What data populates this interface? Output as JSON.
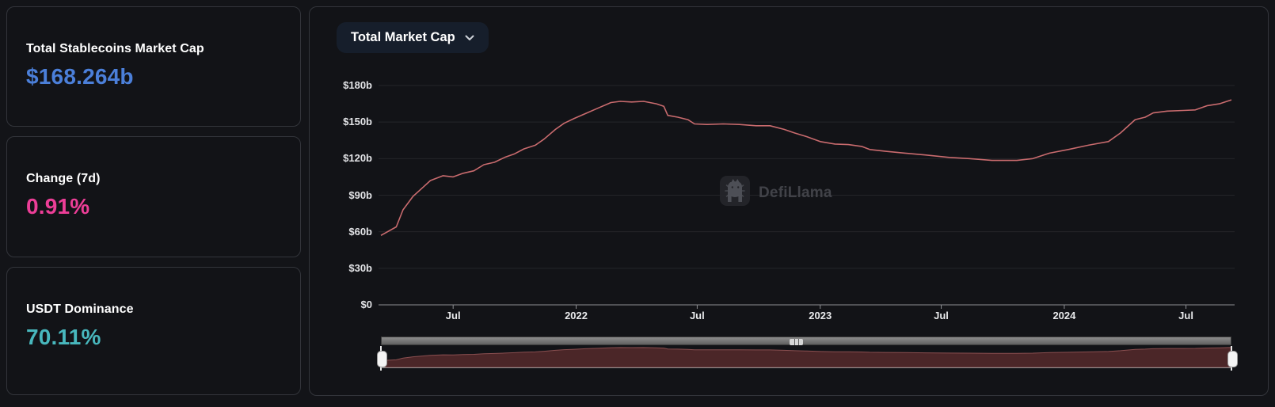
{
  "stats": {
    "market_cap": {
      "label": "Total Stablecoins Market Cap",
      "value": "$168.264b",
      "color": "#4b7fd9"
    },
    "change_7d": {
      "label": "Change (7d)",
      "value": "0.91%",
      "color": "#ec3e97"
    },
    "dominance": {
      "label": "USDT Dominance",
      "value": "70.11%",
      "color": "#48b7bd"
    }
  },
  "chart_panel": {
    "selector_label": "Total Market Cap",
    "watermark": "DefiLlama"
  },
  "colors": {
    "line": "#c96b6e",
    "brush_fill": "#4b2628",
    "brush_stroke": "#8a4f50",
    "grid": "rgba(255,255,255,0.08)",
    "axis": "#8d8f93"
  },
  "chart_data": {
    "type": "line",
    "title": "Total Market Cap",
    "xlabel": "",
    "ylabel": "",
    "ylim": [
      0,
      180
    ],
    "grid": true,
    "legend": "none",
    "y_ticks": [
      {
        "v": 0,
        "label": "$0"
      },
      {
        "v": 30,
        "label": "$30b"
      },
      {
        "v": 60,
        "label": "$60b"
      },
      {
        "v": 90,
        "label": "$90b"
      },
      {
        "v": 120,
        "label": "$120b"
      },
      {
        "v": 150,
        "label": "$150b"
      },
      {
        "v": 180,
        "label": "$180b"
      }
    ],
    "x_ticks": [
      {
        "date": "2021-07-01",
        "label": "Jul",
        "bold": false
      },
      {
        "date": "2022-01-01",
        "label": "2022",
        "bold": true
      },
      {
        "date": "2022-07-01",
        "label": "Jul",
        "bold": false
      },
      {
        "date": "2023-01-01",
        "label": "2023",
        "bold": true
      },
      {
        "date": "2023-07-01",
        "label": "Jul",
        "bold": false
      },
      {
        "date": "2024-01-01",
        "label": "2024",
        "bold": true
      },
      {
        "date": "2024-07-01",
        "label": "Jul",
        "bold": false
      }
    ],
    "series": [
      {
        "name": "Total Stablecoins Market Cap ($b)",
        "points": [
          [
            "2021-03-15",
            57
          ],
          [
            "2021-04-07",
            64
          ],
          [
            "2021-04-17",
            78
          ],
          [
            "2021-05-02",
            89
          ],
          [
            "2021-05-16",
            96
          ],
          [
            "2021-05-28",
            102
          ],
          [
            "2021-06-16",
            106
          ],
          [
            "2021-07-01",
            105
          ],
          [
            "2021-07-16",
            108
          ],
          [
            "2021-08-01",
            110
          ],
          [
            "2021-08-16",
            115
          ],
          [
            "2021-09-01",
            117
          ],
          [
            "2021-09-16",
            121
          ],
          [
            "2021-10-01",
            124
          ],
          [
            "2021-10-15",
            128
          ],
          [
            "2021-11-01",
            131
          ],
          [
            "2021-11-14",
            136
          ],
          [
            "2021-12-01",
            144
          ],
          [
            "2021-12-14",
            149
          ],
          [
            "2021-12-29",
            153
          ],
          [
            "2022-01-15",
            157
          ],
          [
            "2022-02-05",
            162
          ],
          [
            "2022-02-22",
            166
          ],
          [
            "2022-03-08",
            167
          ],
          [
            "2022-03-25",
            166.5
          ],
          [
            "2022-04-12",
            167
          ],
          [
            "2022-05-01",
            165
          ],
          [
            "2022-05-12",
            163
          ],
          [
            "2022-05-18",
            155.5
          ],
          [
            "2022-06-02",
            154
          ],
          [
            "2022-06-17",
            152
          ],
          [
            "2022-06-27",
            148.5
          ],
          [
            "2022-07-16",
            148
          ],
          [
            "2022-08-09",
            148.5
          ],
          [
            "2022-09-02",
            148
          ],
          [
            "2022-09-27",
            147
          ],
          [
            "2022-10-18",
            147
          ],
          [
            "2022-11-08",
            144
          ],
          [
            "2022-11-24",
            141
          ],
          [
            "2022-12-12",
            138
          ],
          [
            "2023-01-01",
            134
          ],
          [
            "2023-01-23",
            132
          ],
          [
            "2023-02-12",
            131.5
          ],
          [
            "2023-03-04",
            130
          ],
          [
            "2023-03-16",
            127.5
          ],
          [
            "2023-04-09",
            126
          ],
          [
            "2023-05-08",
            124.5
          ],
          [
            "2023-06-07",
            123
          ],
          [
            "2023-07-13",
            121
          ],
          [
            "2023-08-12",
            120
          ],
          [
            "2023-09-15",
            118.5
          ],
          [
            "2023-10-22",
            118.5
          ],
          [
            "2023-11-15",
            120
          ],
          [
            "2023-12-10",
            124.5
          ],
          [
            "2024-01-07",
            127.5
          ],
          [
            "2024-02-06",
            131
          ],
          [
            "2024-03-07",
            134
          ],
          [
            "2024-03-25",
            141
          ],
          [
            "2024-04-16",
            152
          ],
          [
            "2024-05-01",
            154
          ],
          [
            "2024-05-13",
            157.5
          ],
          [
            "2024-06-03",
            159
          ],
          [
            "2024-06-27",
            159.5
          ],
          [
            "2024-07-15",
            160
          ],
          [
            "2024-08-02",
            163.5
          ],
          [
            "2024-08-20",
            165
          ],
          [
            "2024-09-07",
            168.264
          ]
        ]
      }
    ]
  }
}
